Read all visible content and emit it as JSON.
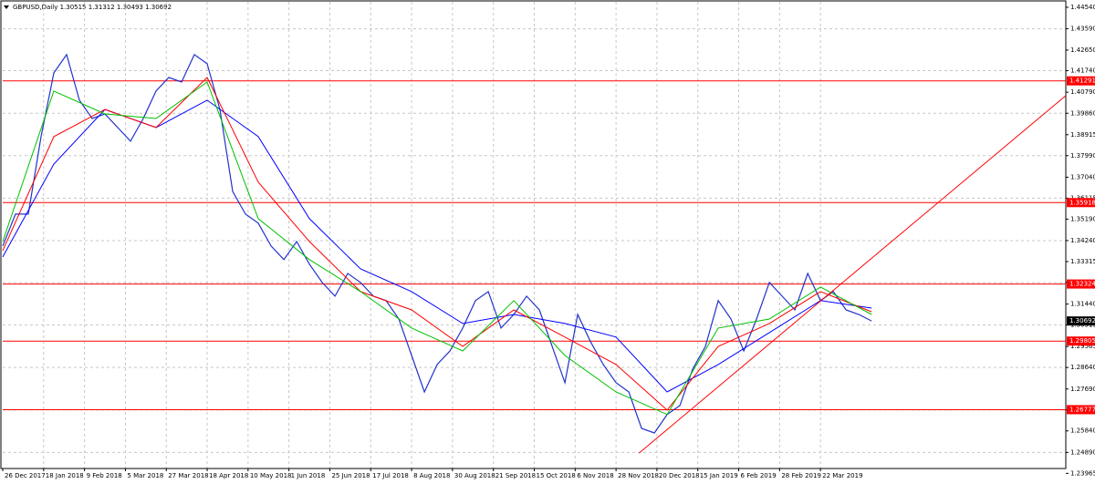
{
  "chart_data": {
    "type": "line",
    "title": "GBPUSD,Daily  1.30515 1.31312 1.30493 1.30692",
    "xlim": [
      0,
      416
    ],
    "ylim": [
      1.2418,
      1.4478
    ],
    "xticks": [
      {
        "value": 0,
        "label": "26 Dec 2017"
      },
      {
        "value": 16,
        "label": "18 Jan 2018"
      },
      {
        "value": 32,
        "label": "9 Feb 2018"
      },
      {
        "value": 48,
        "label": "5 Mar 2018"
      },
      {
        "value": 64,
        "label": "27 Mar 2018"
      },
      {
        "value": 80,
        "label": "18 Apr 2018"
      },
      {
        "value": 96,
        "label": "10 May 2018"
      },
      {
        "value": 112,
        "label": "1 Jun 2018"
      },
      {
        "value": 128,
        "label": "25 Jun 2018"
      },
      {
        "value": 144,
        "label": "17 Jul 2018"
      },
      {
        "value": 160,
        "label": "8 Aug 2018"
      },
      {
        "value": 176,
        "label": "30 Aug 2018"
      },
      {
        "value": 192,
        "label": "21 Sep 2018"
      },
      {
        "value": 208,
        "label": "15 Oct 2018"
      },
      {
        "value": 224,
        "label": "6 Nov 2018"
      },
      {
        "value": 240,
        "label": "28 Nov 2018"
      },
      {
        "value": 256,
        "label": "20 Dec 2018"
      },
      {
        "value": 272,
        "label": "15 Jan 2019"
      },
      {
        "value": 288,
        "label": "6 Feb 2019"
      },
      {
        "value": 304,
        "label": "28 Feb 2019"
      },
      {
        "value": 320,
        "label": "22 Mar 2019"
      }
    ],
    "yticks": [
      {
        "value": 1.4454,
        "label": "1.44540"
      },
      {
        "value": 1.4359,
        "label": "1.43590"
      },
      {
        "value": 1.4265,
        "label": "1.42650"
      },
      {
        "value": 1.4174,
        "label": "1.41740"
      },
      {
        "value": 1.4079,
        "label": "1.40790"
      },
      {
        "value": 1.3986,
        "label": "1.39860"
      },
      {
        "value": 1.38915,
        "label": "1.38915"
      },
      {
        "value": 1.3799,
        "label": "1.37990"
      },
      {
        "value": 1.3704,
        "label": "1.37040"
      },
      {
        "value": 1.36115,
        "label": "1.36115"
      },
      {
        "value": 1.3519,
        "label": "1.35190"
      },
      {
        "value": 1.3424,
        "label": "1.34240"
      },
      {
        "value": 1.33315,
        "label": "1.33315"
      },
      {
        "value": 1.3239,
        "label": "1.32390"
      },
      {
        "value": 1.3144,
        "label": "1.31440"
      },
      {
        "value": 1.30515,
        "label": "1.30515"
      },
      {
        "value": 1.29565,
        "label": "1.29565"
      },
      {
        "value": 1.2864,
        "label": "1.28640"
      },
      {
        "value": 1.2769,
        "label": "1.27690"
      },
      {
        "value": 1.26765,
        "label": "1.26765"
      },
      {
        "value": 1.2584,
        "label": "1.25840"
      },
      {
        "value": 1.2489,
        "label": "1.24890"
      },
      {
        "value": 1.23965,
        "label": "1.23965"
      }
    ],
    "grid": true,
    "series": [
      {
        "name": "GBPUSD",
        "color": "#2233cc",
        "x": [
          0,
          5,
          10,
          15,
          20,
          25,
          30,
          35,
          40,
          45,
          50,
          55,
          60,
          65,
          70,
          75,
          80,
          85,
          90,
          95,
          100,
          105,
          110,
          115,
          120,
          125,
          130,
          135,
          140,
          145,
          150,
          155,
          160,
          165,
          170,
          175,
          180,
          185,
          190,
          195,
          200,
          205,
          210,
          215,
          220,
          225,
          230,
          235,
          240,
          245,
          250,
          255,
          260,
          265,
          270,
          275,
          280,
          285,
          290,
          295,
          300,
          305,
          310,
          315,
          320,
          325,
          330,
          335,
          340
        ],
        "values": [
          1.34,
          1.3541,
          1.3541,
          1.3883,
          1.4164,
          1.4245,
          1.4044,
          1.3963,
          1.3983,
          1.3923,
          1.3863,
          1.3963,
          1.4084,
          1.4144,
          1.4124,
          1.4245,
          1.4205,
          1.4003,
          1.3641,
          1.3541,
          1.3501,
          1.34,
          1.334,
          1.342,
          1.332,
          1.3239,
          1.3179,
          1.3279,
          1.3239,
          1.3179,
          1.3159,
          1.3078,
          1.2917,
          1.2756,
          1.2877,
          1.2937,
          1.3038,
          1.3159,
          1.3199,
          1.3038,
          1.3098,
          1.3179,
          1.3118,
          1.2957,
          1.2797,
          1.3098,
          1.2978,
          1.2877,
          1.2797,
          1.2756,
          1.2595,
          1.2575,
          1.2656,
          1.2696,
          1.2857,
          1.2957,
          1.3159,
          1.3078,
          1.2937,
          1.3078,
          1.3239,
          1.3179,
          1.3118,
          1.3279,
          1.3159,
          1.3199,
          1.3118,
          1.3098,
          1.30692
        ]
      },
      {
        "color": "#0000ff",
        "x": [
          0,
          20,
          40,
          60,
          80,
          100,
          120,
          140,
          160,
          180,
          200,
          220,
          240,
          260,
          280,
          300,
          320,
          340
        ],
        "values": [
          1.3352,
          1.3762,
          1.4003,
          1.3923,
          1.4044,
          1.3883,
          1.3521,
          1.3299,
          1.3199,
          1.3058,
          1.3098,
          1.3058,
          1.2998,
          1.2756,
          1.2877,
          1.3018,
          1.3159,
          1.3126
        ]
      },
      {
        "color": "#ff0000",
        "x": [
          0,
          20,
          40,
          60,
          80,
          100,
          120,
          140,
          160,
          180,
          200,
          220,
          240,
          260,
          280,
          300,
          320,
          340
        ],
        "values": [
          1.338,
          1.3883,
          1.4003,
          1.3923,
          1.4144,
          1.3682,
          1.342,
          1.3199,
          1.3118,
          1.2957,
          1.3118,
          1.2998,
          1.2877,
          1.2676,
          1.2957,
          1.3058,
          1.3199,
          1.311
        ]
      },
      {
        "color": "#00c000",
        "x": [
          0,
          20,
          40,
          60,
          80,
          100,
          120,
          140,
          160,
          180,
          200,
          220,
          240,
          260,
          280,
          300,
          320,
          340
        ],
        "values": [
          1.342,
          1.4084,
          1.3983,
          1.3963,
          1.4124,
          1.3521,
          1.334,
          1.3199,
          1.3038,
          1.2937,
          1.3159,
          1.2917,
          1.2756,
          1.2656,
          1.3038,
          1.3078,
          1.3219,
          1.3098
        ]
      }
    ],
    "trendline": {
      "color": "#ff0000",
      "x": [
        249,
        416
      ],
      "values": [
        1.2486,
        1.4064
      ]
    },
    "levels": {
      "color": "#ff0000",
      "values": [
        1.41291,
        1.35918,
        1.32324,
        1.29805,
        1.26777
      ]
    },
    "current_price": 1.30692
  }
}
